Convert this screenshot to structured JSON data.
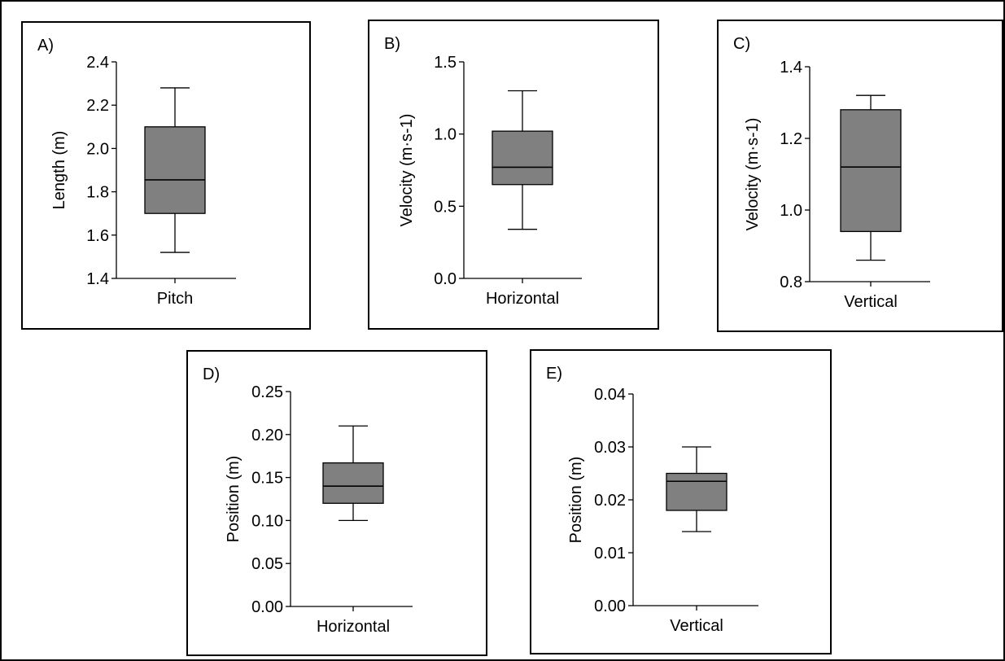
{
  "chart_data": [
    {
      "panel": "A)",
      "type": "box",
      "categories": [
        "Pitch"
      ],
      "ylabel": "Length (m)",
      "ylim": [
        1.4,
        2.4
      ],
      "yticks": [
        "1.4",
        "1.6",
        "1.8",
        "2.0",
        "2.2",
        "2.4"
      ],
      "tick_values": [
        1.4,
        1.6,
        1.8,
        2.0,
        2.2,
        2.4
      ],
      "values": [
        {
          "min": 1.52,
          "q1": 1.7,
          "median": 1.855,
          "q3": 2.1,
          "max": 2.28
        }
      ]
    },
    {
      "panel": "B)",
      "type": "box",
      "categories": [
        "Horizontal"
      ],
      "ylabel": "Velocity (m·s-1)",
      "ylim": [
        0.0,
        1.5
      ],
      "yticks": [
        "0.0",
        "0.5",
        "1.0",
        "1.5"
      ],
      "tick_values": [
        0.0,
        0.5,
        1.0,
        1.5
      ],
      "values": [
        {
          "min": 0.34,
          "q1": 0.65,
          "median": 0.77,
          "q3": 1.02,
          "max": 1.3
        }
      ]
    },
    {
      "panel": "C)",
      "type": "box",
      "categories": [
        "Vertical"
      ],
      "ylabel": "Velocity (m·s-1)",
      "ylim": [
        0.8,
        1.4
      ],
      "yticks": [
        "0.8",
        "1.0",
        "1.2",
        "1.4"
      ],
      "tick_values": [
        0.8,
        1.0,
        1.2,
        1.4
      ],
      "values": [
        {
          "min": 0.86,
          "q1": 0.94,
          "median": 1.12,
          "q3": 1.28,
          "max": 1.32
        }
      ]
    },
    {
      "panel": "D)",
      "type": "box",
      "categories": [
        "Horizontal"
      ],
      "ylabel": "Position (m)",
      "ylim": [
        0.0,
        0.25
      ],
      "yticks": [
        "0.00",
        "0.05",
        "0.10",
        "0.15",
        "0.20",
        "0.25"
      ],
      "tick_values": [
        0.0,
        0.05,
        0.1,
        0.15,
        0.2,
        0.25
      ],
      "values": [
        {
          "min": 0.1,
          "q1": 0.12,
          "median": 0.14,
          "q3": 0.167,
          "max": 0.21
        }
      ]
    },
    {
      "panel": "E)",
      "type": "box",
      "categories": [
        "Vertical"
      ],
      "ylabel": "Position (m)",
      "ylim": [
        0.0,
        0.04
      ],
      "yticks": [
        "0.00",
        "0.01",
        "0.02",
        "0.03",
        "0.04"
      ],
      "tick_values": [
        0.0,
        0.01,
        0.02,
        0.03,
        0.04
      ],
      "values": [
        {
          "min": 0.014,
          "q1": 0.018,
          "median": 0.0235,
          "q3": 0.025,
          "max": 0.03
        }
      ]
    }
  ],
  "colors": {
    "box_fill": "#808080",
    "stroke": "#000000",
    "background": "#ffffff"
  }
}
